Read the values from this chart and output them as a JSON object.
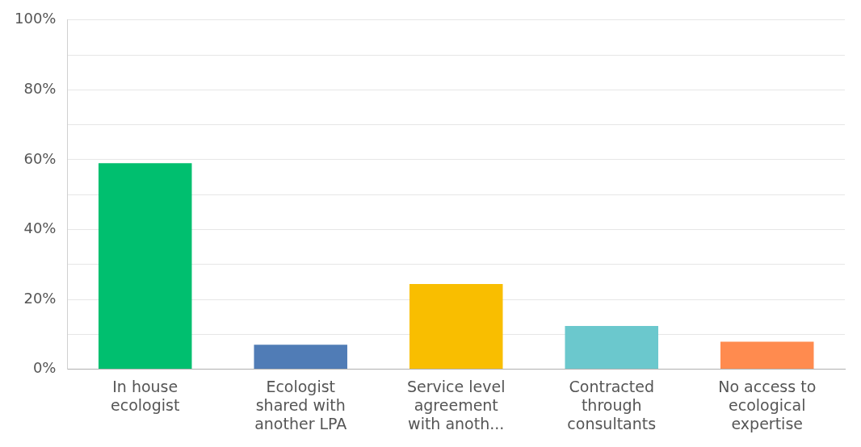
{
  "chart_data": {
    "type": "bar",
    "categories": [
      "In house ecologist",
      "Ecologist shared with another LPA",
      "Service level agreement with anoth...",
      "Contracted through consultants",
      "No access to ecological expertise"
    ],
    "values": [
      59,
      7,
      24.4,
      12.4,
      7.9
    ],
    "colors": [
      "#00bf6f",
      "#507cb6",
      "#f9be00",
      "#6bc8cd",
      "#ff8b4f"
    ],
    "ylim": [
      0,
      100
    ],
    "yticks": [
      {
        "value": 0,
        "label": "0%"
      },
      {
        "value": 10,
        "label": null
      },
      {
        "value": 20,
        "label": "20%"
      },
      {
        "value": 30,
        "label": null
      },
      {
        "value": 40,
        "label": "40%"
      },
      {
        "value": 50,
        "label": null
      },
      {
        "value": 60,
        "label": "60%"
      },
      {
        "value": 70,
        "label": null
      },
      {
        "value": 80,
        "label": "80%"
      },
      {
        "value": 90,
        "label": null
      },
      {
        "value": 100,
        "label": "100%"
      }
    ],
    "grid": "y"
  }
}
